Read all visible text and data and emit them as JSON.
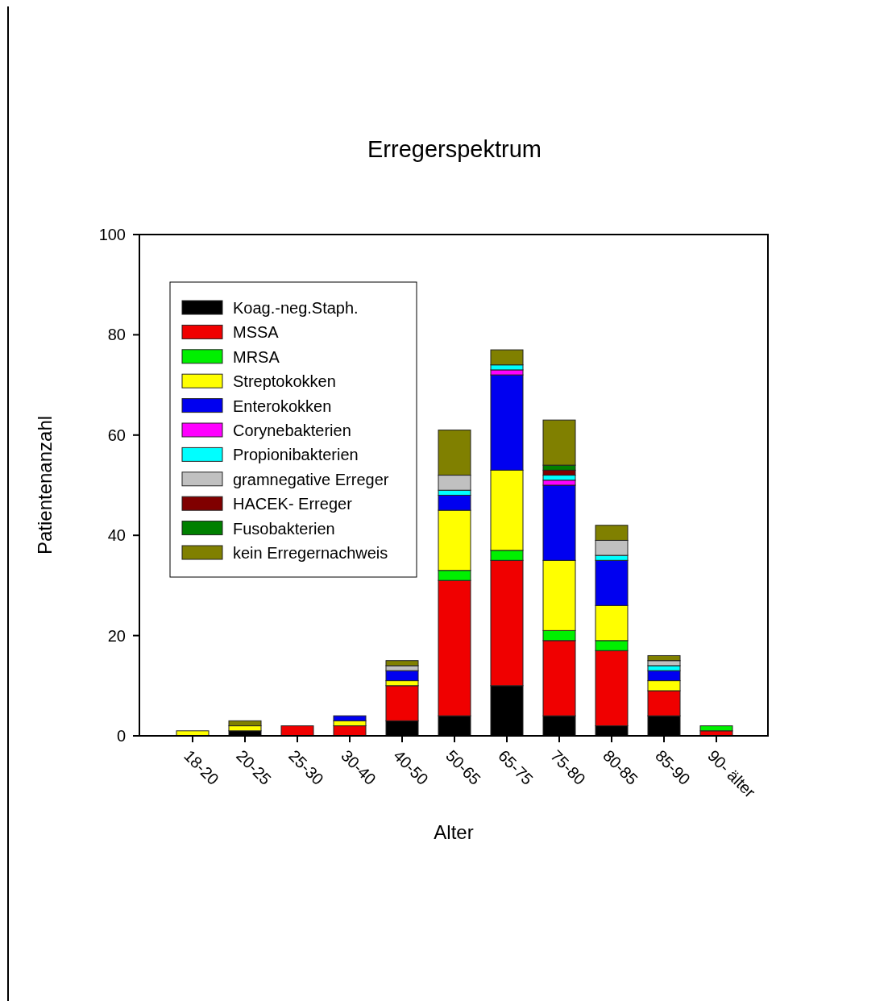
{
  "chart_data": {
    "type": "bar",
    "title": "Erregerspektrum",
    "xlabel": "Alter",
    "ylabel": "Patientenanzahl",
    "stacked": true,
    "legend": "top left",
    "grid": false,
    "categories": [
      "18-20",
      "20-25",
      "25-30",
      "30-40",
      "40-50",
      "50-65",
      "65-75",
      "75-80",
      "80-85",
      "85-90",
      "90- älter"
    ],
    "ylim": [
      0,
      100
    ],
    "yticks": [
      0,
      20,
      40,
      60,
      80,
      100
    ],
    "series": [
      {
        "name": "Koag.-neg.Staph.",
        "color": "#000000",
        "values": [
          0,
          1,
          0,
          0,
          3,
          4,
          10,
          4,
          2,
          4,
          0
        ]
      },
      {
        "name": "MSSA",
        "color": "#f00000",
        "values": [
          0,
          0,
          2,
          2,
          7,
          27,
          25,
          15,
          15,
          5,
          1
        ]
      },
      {
        "name": "MRSA",
        "color": "#00f000",
        "values": [
          0,
          0,
          0,
          0,
          0,
          2,
          2,
          2,
          2,
          0,
          1
        ]
      },
      {
        "name": "Streptokokken",
        "color": "#ffff00",
        "values": [
          1,
          1,
          0,
          1,
          1,
          12,
          16,
          14,
          7,
          2,
          0
        ]
      },
      {
        "name": "Enterokokken",
        "color": "#0000f0",
        "values": [
          0,
          0,
          0,
          1,
          2,
          3,
          19,
          15,
          9,
          2,
          0
        ]
      },
      {
        "name": "Corynebakterien",
        "color": "#ff00ff",
        "values": [
          0,
          0,
          0,
          0,
          0,
          0,
          1,
          1,
          0,
          0,
          0
        ]
      },
      {
        "name": "Propionibakterien",
        "color": "#00ffff",
        "values": [
          0,
          0,
          0,
          0,
          0,
          1,
          1,
          1,
          1,
          1,
          0
        ]
      },
      {
        "name": "gramnegative Erreger",
        "color": "#c0c0c0",
        "values": [
          0,
          0,
          0,
          0,
          1,
          3,
          0,
          0,
          3,
          1,
          0
        ]
      },
      {
        "name": "HACEK- Erreger",
        "color": "#800000",
        "values": [
          0,
          0,
          0,
          0,
          0,
          0,
          0,
          1,
          0,
          0,
          0
        ]
      },
      {
        "name": "Fusobakterien",
        "color": "#008000",
        "values": [
          0,
          0,
          0,
          0,
          0,
          0,
          0,
          1,
          0,
          0,
          0
        ]
      },
      {
        "name": "kein Erregernachweis",
        "color": "#808000",
        "values": [
          0,
          1,
          0,
          0,
          1,
          9,
          3,
          9,
          3,
          1,
          0
        ]
      }
    ]
  }
}
